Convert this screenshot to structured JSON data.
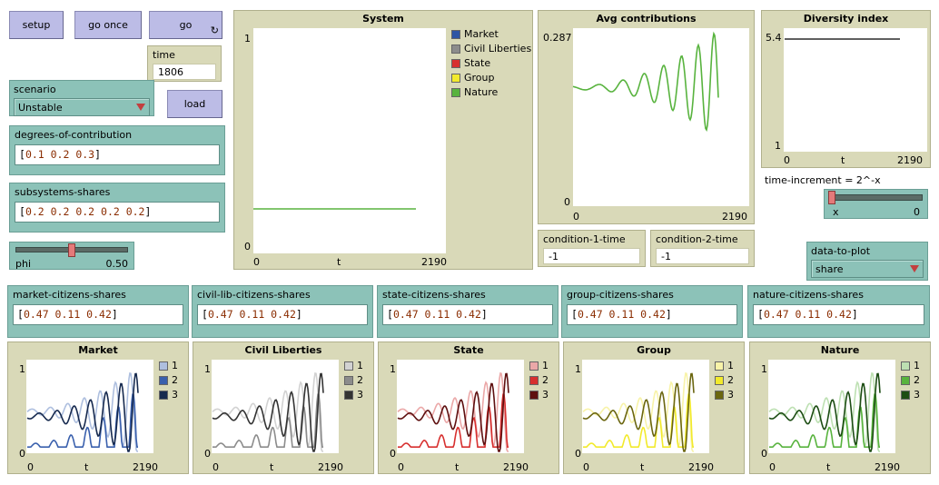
{
  "buttons": {
    "setup": "setup",
    "go_once": "go once",
    "go": "go",
    "go_icon": "loop-icon",
    "load": "load"
  },
  "time": {
    "label": "time",
    "value": "1806"
  },
  "scenario": {
    "label": "scenario",
    "value": "Unstable"
  },
  "degrees_of_contribution": {
    "label": "degrees-of-contribution",
    "value": "0.1 0.2 0.3"
  },
  "subsystems_shares": {
    "label": "subsystems-shares",
    "value": "0.2 0.2 0.2 0.2 0.2"
  },
  "phi": {
    "label": "phi",
    "value": "0.50",
    "level": 0.5
  },
  "system_plot": {
    "title": "System",
    "ymax": "1",
    "ymin": "0",
    "xmin": "0",
    "xlabel": "t",
    "xmax": "2190",
    "legend": [
      {
        "name": "Market",
        "color": "#2f55a4"
      },
      {
        "name": "Civil Liberties",
        "color": "#8c8c8c"
      },
      {
        "name": "State",
        "color": "#d7302f"
      },
      {
        "name": "Group",
        "color": "#f2ea2c"
      },
      {
        "name": "Nature",
        "color": "#58b33e"
      }
    ]
  },
  "avg_plot": {
    "title": "Avg contributions",
    "ymax": "0.287",
    "ymin": "0",
    "xmin": "0",
    "xmax": "2190",
    "line_color": "#58b33e"
  },
  "diversity_plot": {
    "title": "Diversity index",
    "ymax": "5.4",
    "ymin": "1",
    "xmin": "0",
    "xlabel": "t",
    "xmax": "2190"
  },
  "time_increment": {
    "label": "time-increment = 2^-x",
    "var": "x",
    "value": "0",
    "level": 0
  },
  "condition_1": {
    "label": "condition-1-time",
    "value": "-1"
  },
  "condition_2": {
    "label": "condition-2-time",
    "value": "-1"
  },
  "data_to_plot": {
    "label": "data-to-plot",
    "value": "share"
  },
  "citizen_inputs": [
    {
      "label": "market-citizens-shares",
      "value": "0.47 0.11 0.42"
    },
    {
      "label": "civil-lib-citizens-shares",
      "value": "0.47 0.11 0.42"
    },
    {
      "label": "state-citizens-shares",
      "value": "0.47 0.11 0.42"
    },
    {
      "label": "group-citizens-shares",
      "value": "0.47 0.11 0.42"
    },
    {
      "label": "nature-citizens-shares",
      "value": "0.47 0.11 0.42"
    }
  ],
  "small_plots": [
    {
      "title": "Market",
      "ymax": "1",
      "ymin": "0",
      "xmin": "0",
      "xlabel": "t",
      "xmax": "2190",
      "legend": [
        "1",
        "2",
        "3"
      ],
      "colors": [
        "#aebfdf",
        "#3a60ad",
        "#172a4f"
      ]
    },
    {
      "title": "Civil Liberties",
      "ymax": "1",
      "ymin": "0",
      "xmin": "0",
      "xlabel": "t",
      "xmax": "2190",
      "legend": [
        "1",
        "2",
        "3"
      ],
      "colors": [
        "#d2d2d2",
        "#8c8c8c",
        "#333333"
      ]
    },
    {
      "title": "State",
      "ymax": "1",
      "ymin": "0",
      "xmin": "0",
      "xlabel": "t",
      "xmax": "2190",
      "legend": [
        "1",
        "2",
        "3"
      ],
      "colors": [
        "#eba8a8",
        "#d7302f",
        "#5e1010"
      ]
    },
    {
      "title": "Group",
      "ymax": "1",
      "ymin": "0",
      "xmin": "0",
      "xlabel": "t",
      "xmax": "2190",
      "legend": [
        "1",
        "2",
        "3"
      ],
      "colors": [
        "#f8f3a8",
        "#f2ea2c",
        "#6b6610"
      ]
    },
    {
      "title": "Nature",
      "ymax": "1",
      "ymin": "0",
      "xmin": "0",
      "xlabel": "t",
      "xmax": "2190",
      "legend": [
        "1",
        "2",
        "3"
      ],
      "colors": [
        "#bde0b2",
        "#58b33e",
        "#1d4d14"
      ]
    }
  ]
}
